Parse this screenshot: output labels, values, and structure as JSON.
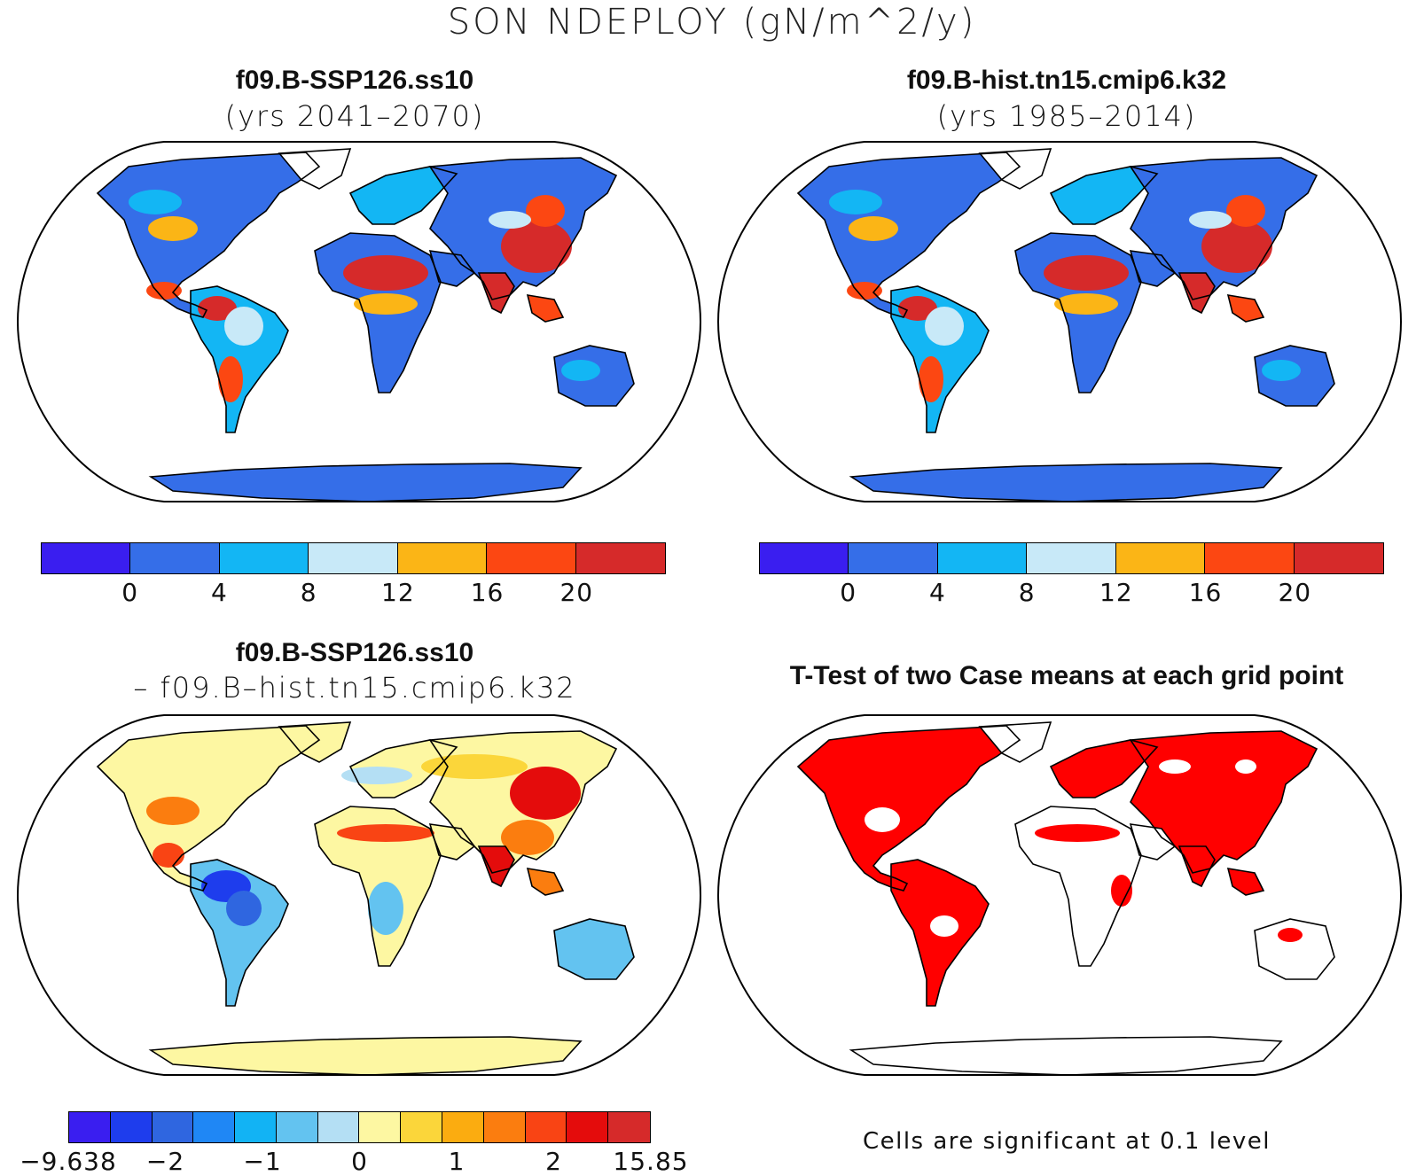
{
  "title": "SON NDEPLOY (gN/m^2/y)",
  "panels": [
    {
      "title": "f09.B-SSP126.ss10",
      "subtitle": "(yrs 2041–2070)",
      "style": "abs"
    },
    {
      "title": "f09.B-hist.tn15.cmip6.k32",
      "subtitle": "(yrs 1985–2014)",
      "style": "abs"
    },
    {
      "title": "f09.B-SSP126.ss10",
      "subtitle": "– f09.B–hist.tn15.cmip6.k32",
      "style": "diff"
    },
    {
      "title": "T-Test of two Case means at each grid point",
      "subtitle": "",
      "style": "ttest"
    }
  ],
  "colorbar_abs": {
    "colors": [
      "#3a1ef0",
      "#356ee8",
      "#13b6f4",
      "#c8e9f8",
      "#fbb516",
      "#fc4712",
      "#d62a2a"
    ],
    "ticks": [
      "0",
      "4",
      "8",
      "12",
      "16",
      "20"
    ]
  },
  "colorbar_diff": {
    "colors": [
      "#3a1ef0",
      "#1e3ded",
      "#2f66e0",
      "#1f87f5",
      "#12b3f4",
      "#63c3f0",
      "#b4dff4",
      "#fdf7a2",
      "#fbd63a",
      "#fbac10",
      "#fb7d0f",
      "#f94414",
      "#e40c0c",
      "#d62a2a"
    ],
    "ticks": [
      "−9.638",
      "−2",
      "−1",
      "0",
      "1",
      "2",
      "15.85"
    ]
  },
  "significance_note": "Cells are significant at 0.1 level",
  "ttest_color": "#ff0000"
}
